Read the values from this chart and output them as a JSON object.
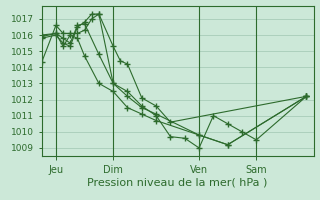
{
  "title": "",
  "xlabel": "Pression niveau de la mer( hPa )",
  "bg_color": "#cce8d8",
  "plot_bg_color": "#cce8d8",
  "line_color": "#2d6b2d",
  "grid_color": "#a8ccb8",
  "ylim": [
    1008.5,
    1017.8
  ],
  "yticks": [
    1009,
    1010,
    1011,
    1012,
    1013,
    1014,
    1015,
    1016,
    1017
  ],
  "xtick_labels": [
    "Jeu",
    "Dim",
    "Ven",
    "Sam"
  ],
  "xtick_positions": [
    2,
    10,
    22,
    30
  ],
  "xlim": [
    0,
    38
  ],
  "vline_positions": [
    2,
    10,
    22,
    30
  ],
  "series": [
    [
      1014.3,
      1016.6,
      1016.1,
      1016.1,
      1016.1,
      1016.3,
      1017.0,
      1017.3,
      1015.3,
      1014.4,
      1014.2,
      1012.1,
      1011.6,
      1010.6,
      1012.2
    ],
    [
      1015.8,
      1016.0,
      1015.5,
      1015.3,
      1016.5,
      1016.8,
      1017.3,
      1017.3,
      1013.0,
      1012.5,
      1011.6,
      1011.0,
      1009.7,
      1009.6,
      1009.0,
      1011.0,
      1010.5,
      1010.0,
      1009.5,
      1012.2
    ],
    [
      1015.9,
      1016.1,
      1015.8,
      1015.5,
      1016.6,
      1016.7,
      1014.8,
      1013.0,
      1012.2,
      1011.5,
      1011.1,
      1009.8,
      1009.2,
      1012.2
    ],
    [
      1016.0,
      1016.1,
      1015.3,
      1016.0,
      1015.8,
      1014.7,
      1013.0,
      1012.5,
      1011.5,
      1011.1,
      1010.7,
      1009.8,
      1009.2,
      1012.2
    ]
  ],
  "series_x": [
    [
      0,
      2,
      3,
      4,
      5,
      6,
      7,
      8,
      10,
      11,
      12,
      14,
      16,
      18,
      37
    ],
    [
      0,
      2,
      3,
      4,
      5,
      6,
      7,
      8,
      10,
      12,
      14,
      16,
      18,
      20,
      22,
      24,
      26,
      28,
      30,
      37
    ],
    [
      0,
      2,
      3,
      4,
      5,
      6,
      8,
      10,
      12,
      14,
      16,
      22,
      26,
      37
    ],
    [
      0,
      2,
      3,
      4,
      5,
      6,
      8,
      10,
      12,
      14,
      16,
      22,
      26,
      37
    ]
  ]
}
